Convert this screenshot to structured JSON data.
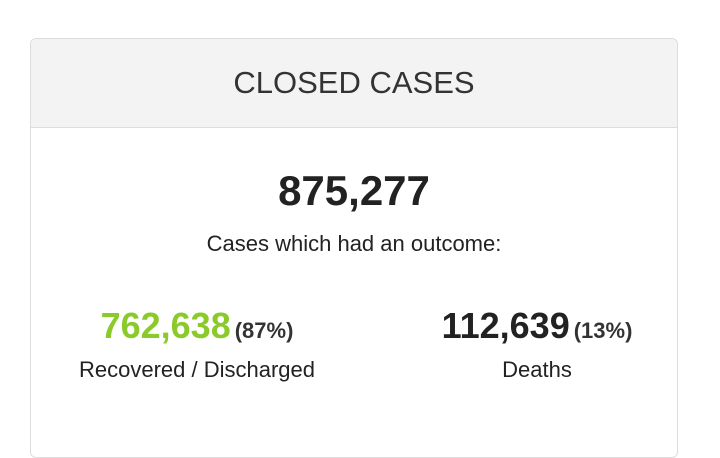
{
  "header": {
    "title": "CLOSED CASES"
  },
  "total": "875,277",
  "subtitle": "Cases which had an outcome:",
  "recovered": {
    "value": "762,638",
    "percent": "(87%)",
    "label": "Recovered / Discharged"
  },
  "deaths": {
    "value": "112,639",
    "percent": "(13%)",
    "label": "Deaths"
  }
}
